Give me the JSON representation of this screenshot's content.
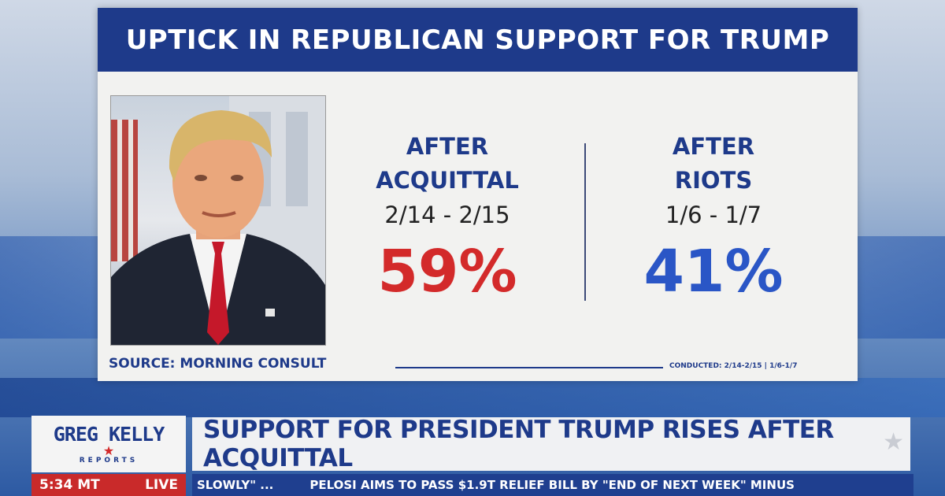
{
  "graphic": {
    "title": "UPTICK IN REPUBLICAN SUPPORT FOR TRUMP",
    "left_stat": {
      "line1": "AFTER",
      "line2": "ACQUITTAL",
      "dates": "2/14 - 2/15",
      "percent": "59%",
      "color": "#d32a2a"
    },
    "right_stat": {
      "line1": "AFTER",
      "line2": "RIOTS",
      "dates": "1/6 - 1/7",
      "percent": "41%",
      "color": "#2a56c6"
    },
    "source": "SOURCE: MORNING CONSULT",
    "conducted": "CONDUCTED: 2/14-2/15 | 1/6-1/7"
  },
  "lower_third": {
    "logo_main": "GREG KELLY",
    "logo_sub": "REPORTS",
    "headline": "SUPPORT FOR PRESIDENT TRUMP RISES AFTER ACQUITTAL",
    "time": "5:34 MT",
    "live": "LIVE",
    "ticker_a": "SLOWLY\" ...",
    "ticker_b": "PELOSI AIMS TO PASS $1.9T RELIEF BILL BY \"END OF NEXT WEEK\" MINUS"
  },
  "colors": {
    "brand_blue": "#1e3a8a",
    "accent_red": "#d32a2a"
  }
}
